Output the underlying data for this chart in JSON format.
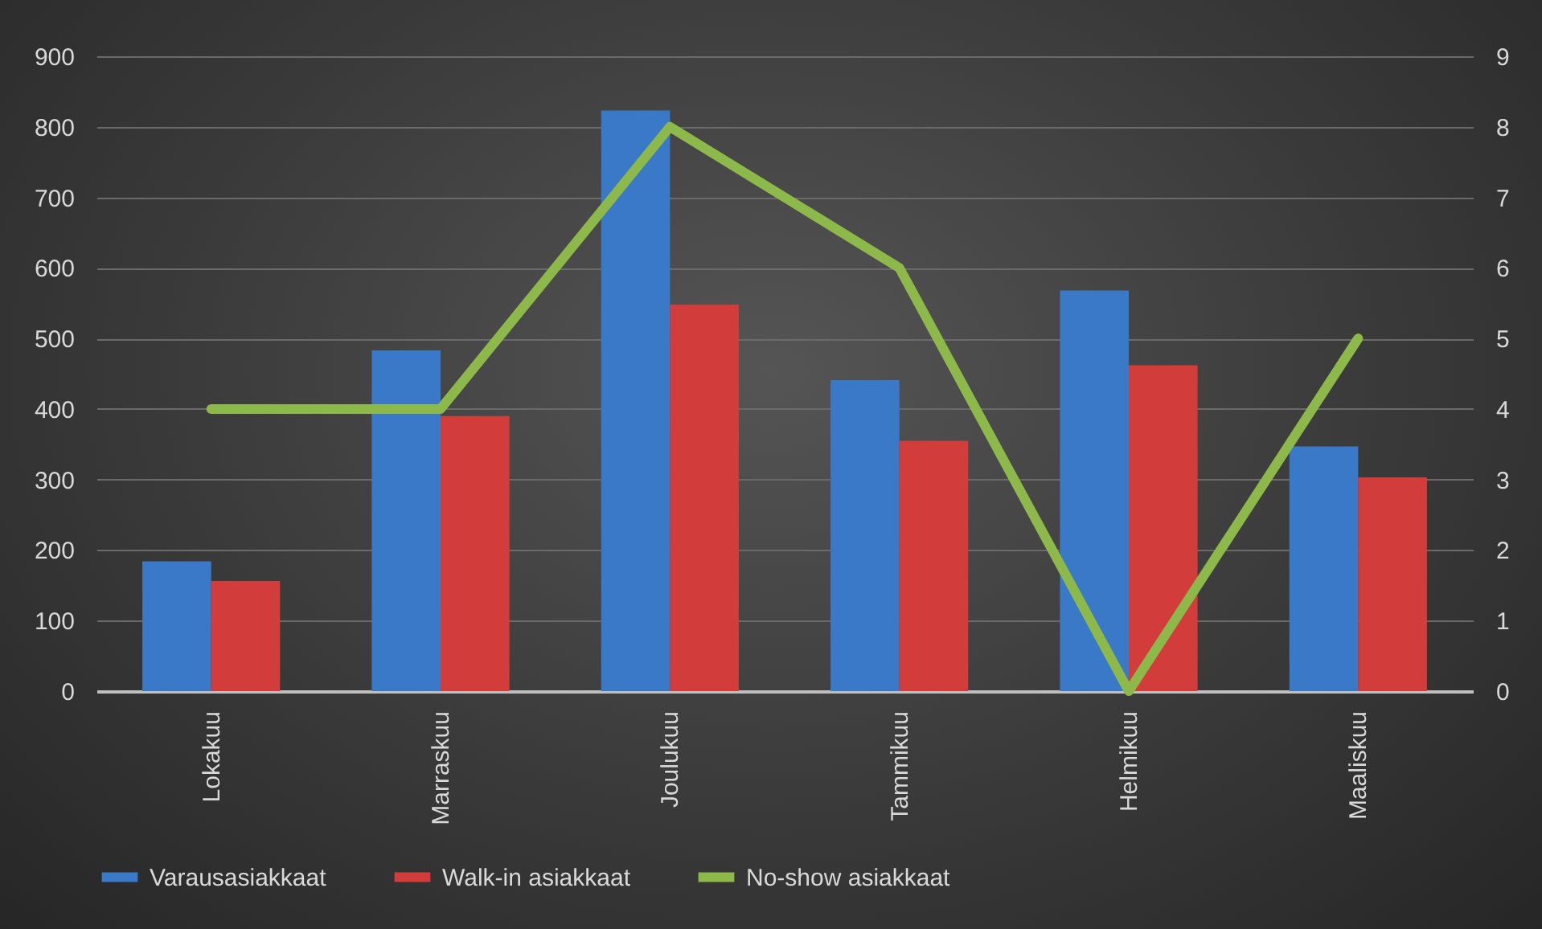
{
  "chart_data": {
    "type": "bar",
    "categories": [
      "Lokakuu",
      "Marraskuu",
      "Joulukuu",
      "Tammikuu",
      "Helmikuu",
      "Maaliskuu"
    ],
    "series": [
      {
        "name": "Varausasiakkaat",
        "color": "#3a78c8",
        "values": [
          184,
          483,
          823,
          441,
          568,
          347
        ]
      },
      {
        "name": "Walk-in asiakkaat",
        "color": "#d23c3a",
        "values": [
          156,
          390,
          548,
          355,
          462,
          303
        ]
      },
      {
        "name": "No-show asiakkaat",
        "type": "line",
        "axis": "y2",
        "color": "#8db84a",
        "values": [
          4,
          4,
          8,
          6,
          0,
          5
        ]
      }
    ],
    "ylim": [
      0,
      900
    ],
    "yticks": [
      0,
      100,
      200,
      300,
      400,
      500,
      600,
      700,
      800,
      900
    ],
    "y2lim": [
      0,
      9
    ],
    "y2ticks": [
      0,
      1,
      2,
      3,
      4,
      5,
      6,
      7,
      8,
      9
    ],
    "grid": "y",
    "legend": "bottom",
    "marker": "none",
    "line_style": "solid"
  }
}
